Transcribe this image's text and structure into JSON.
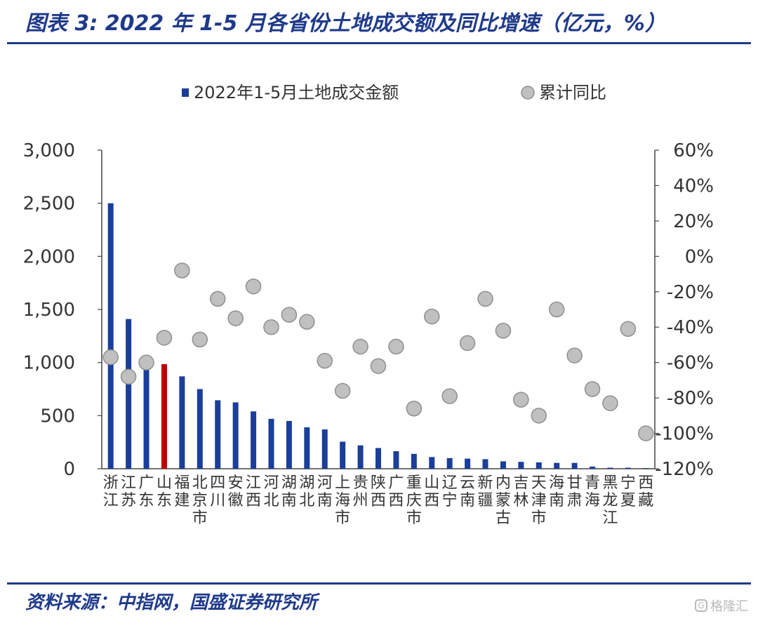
{
  "header": {
    "title": "图表 3:  2022 年 1-5 月各省份土地成交额及同比增速（亿元，%）"
  },
  "footer": {
    "source": "资料来源：中指网，国盛证券研究所",
    "watermark": "格隆汇"
  },
  "colors": {
    "bar": "#1a3e9a",
    "bar_highlight": "#c00000",
    "dot_fill": "#c0c0c0",
    "dot_stroke": "#8f8f8f",
    "axis": "#444444",
    "title": "#1f3a8a"
  },
  "chart_data": {
    "type": "bar",
    "title": "",
    "categories": [
      "浙江",
      "江苏",
      "广东",
      "山东",
      "福建",
      "北京市",
      "四川",
      "安徽",
      "江西",
      "河北",
      "湖南",
      "湖北",
      "河南",
      "上海市",
      "贵州",
      "陕西",
      "广西",
      "重庆市",
      "山西",
      "辽宁",
      "云南",
      "新疆",
      "内蒙古",
      "吉林",
      "天津市",
      "海南",
      "甘肃",
      "青海",
      "黑龙江",
      "宁夏",
      "西藏"
    ],
    "highlight_index": 3,
    "series": [
      {
        "name": "2022年1-5月土地成交金额",
        "type": "bar",
        "axis": "left",
        "values": [
          2500,
          1410,
          1000,
          985,
          870,
          750,
          645,
          625,
          540,
          470,
          450,
          390,
          370,
          255,
          220,
          195,
          165,
          140,
          110,
          100,
          95,
          90,
          70,
          65,
          60,
          55,
          55,
          20,
          10,
          10,
          5
        ]
      },
      {
        "name": "累计同比",
        "type": "scatter",
        "axis": "right",
        "values": [
          -57,
          -68,
          -60,
          -46,
          -8,
          -47,
          -24,
          -35,
          -17,
          -40,
          -33,
          -37,
          -59,
          -76,
          -51,
          -62,
          -51,
          -86,
          -34,
          -79,
          -49,
          -24,
          -42,
          -81,
          -90,
          -30,
          -56,
          -75,
          -83,
          -41,
          -100
        ]
      }
    ],
    "y_left": {
      "min": 0,
      "max": 3000,
      "ticks": [
        0,
        500,
        1000,
        1500,
        2000,
        2500,
        3000
      ],
      "tick_labels": [
        "0",
        "500",
        "1,000",
        "1,500",
        "2,000",
        "2,500",
        "3,000"
      ]
    },
    "y_right": {
      "min": -120,
      "max": 60,
      "ticks": [
        -120,
        -100,
        -80,
        -60,
        -40,
        -20,
        0,
        20,
        40,
        60
      ],
      "tick_labels": [
        "-120%",
        "-100%",
        "-80%",
        "-60%",
        "-40%",
        "-20%",
        "0%",
        "20%",
        "40%",
        "60%"
      ]
    },
    "legend": {
      "position": "top",
      "items": [
        "2022年1-5月土地成交金额",
        "累计同比"
      ]
    }
  }
}
